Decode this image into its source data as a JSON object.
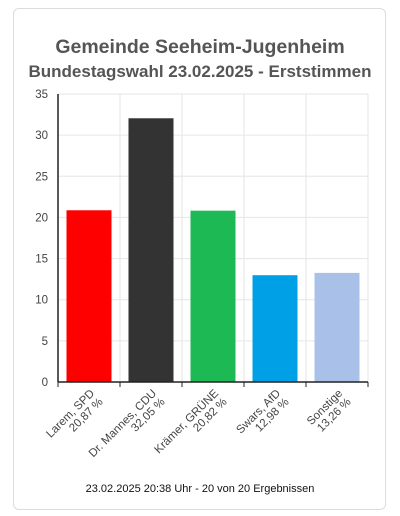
{
  "chart_data": {
    "type": "bar",
    "title": "Gemeinde Seeheim-Jugenheim",
    "subtitle": "Bundestagswahl 23.02.2025  - Erststimmen",
    "categories": [
      [
        "Larem, SPD",
        "20,87 %"
      ],
      [
        "Dr. Mannes, CDU",
        "32,05 %"
      ],
      [
        "Krämer, GRÜNE",
        "20,82 %"
      ],
      [
        "Swars, AfD",
        "12,98 %"
      ],
      [
        "Sonstige",
        "13,26 %"
      ]
    ],
    "values": [
      20.87,
      32.05,
      20.82,
      12.98,
      13.26
    ],
    "colors": [
      "#ff0000",
      "#333333",
      "#1cb955",
      "#00a0e6",
      "#a9c0e8"
    ],
    "ylim": [
      0,
      35
    ],
    "yticks": [
      "0",
      "5",
      "10",
      "15",
      "20",
      "25",
      "30",
      "35"
    ],
    "grid": true,
    "footer": "23.02.2025 20:38 Uhr - 20 von 20 Ergebnissen"
  }
}
